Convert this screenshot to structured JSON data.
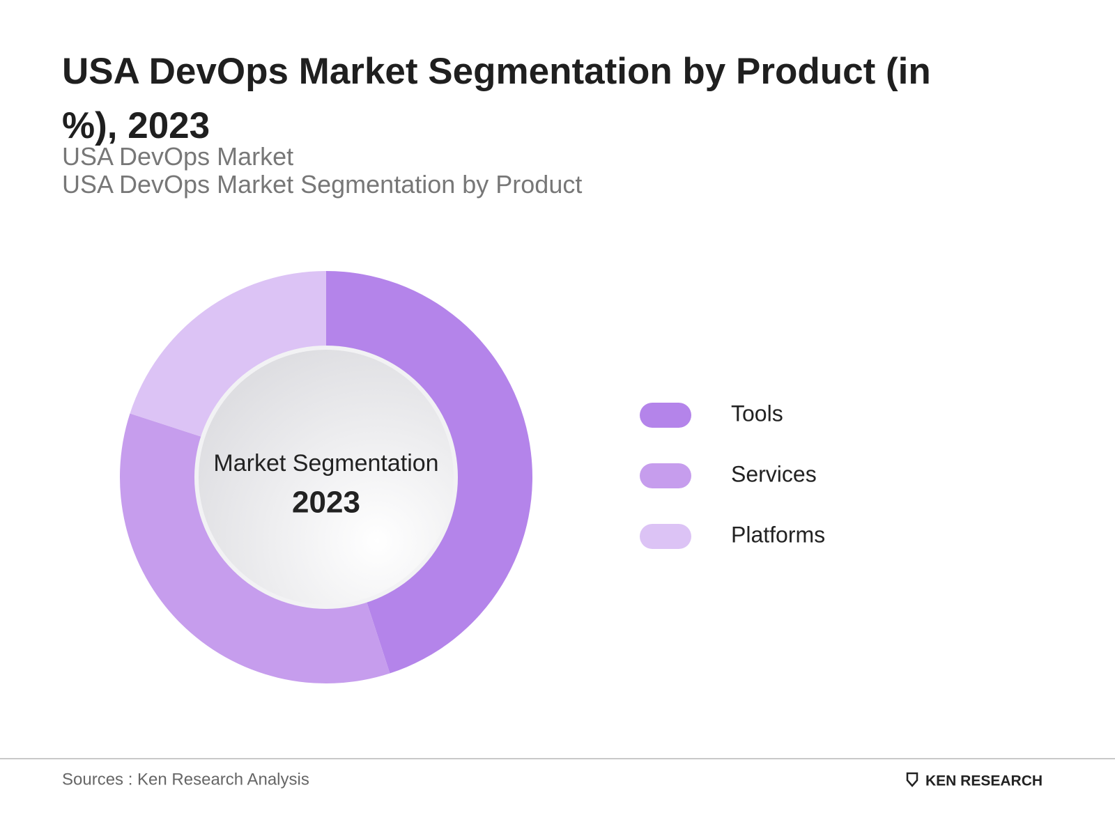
{
  "chart_data": {
    "type": "donut",
    "title": "USA DevOps Market Segmentation by Product (in %), 2023",
    "subtitles": [
      "USA DevOps Market",
      "USA DevOps Market Segmentation by Product"
    ],
    "center_label": "Market Segmentation",
    "center_year": "2023",
    "categories": [
      "Tools",
      "Services",
      "Platforms"
    ],
    "values": [
      45,
      35,
      20
    ],
    "colors": [
      "#b484ea",
      "#c69ded",
      "#dcc3f5"
    ]
  },
  "footer": {
    "source": "Sources : Ken Research Analysis",
    "logo": "KEN RESEARCH"
  }
}
